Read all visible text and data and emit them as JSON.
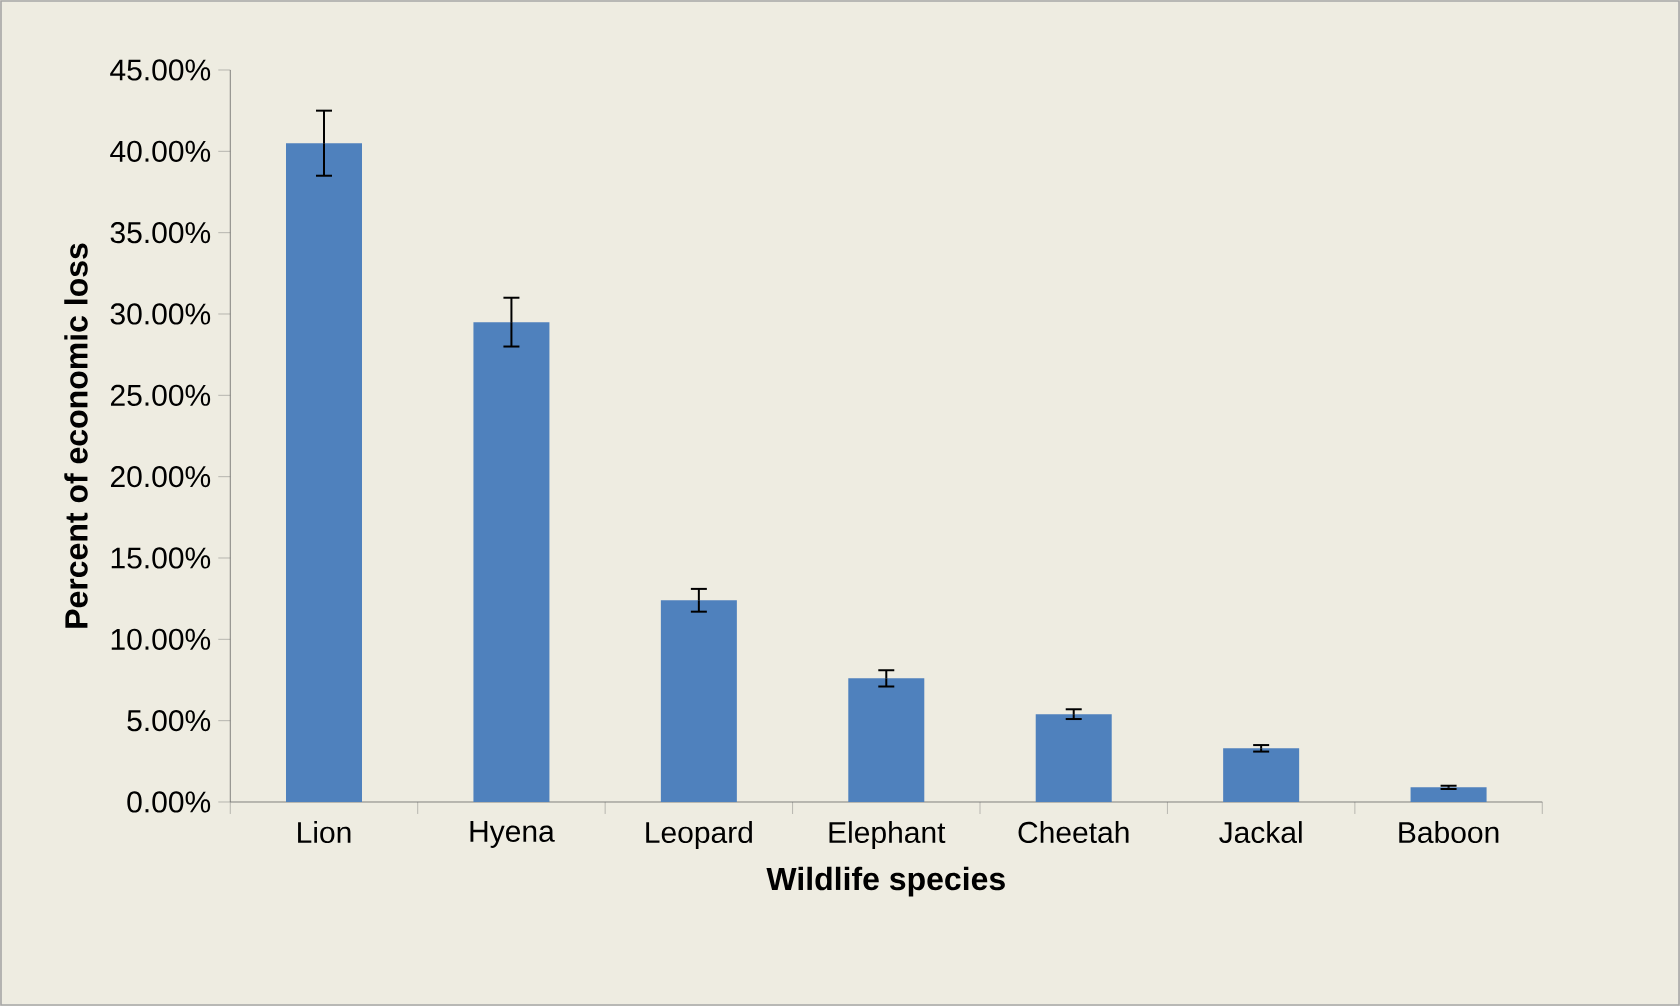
{
  "chart_data": {
    "type": "bar",
    "xlabel": "Wildlife species",
    "ylabel": "Percent of economic loss",
    "categories": [
      "Lion",
      "Hyena",
      "Leopard",
      "Elephant",
      "Cheetah",
      "Jackal",
      "Baboon"
    ],
    "values": [
      40.5,
      29.5,
      12.4,
      7.6,
      5.4,
      3.3,
      0.9
    ],
    "errors": [
      2.0,
      1.5,
      0.7,
      0.5,
      0.3,
      0.2,
      0.1
    ],
    "color": "#4f81bd",
    "ylim": [
      0,
      45
    ],
    "yticks": [
      {
        "value": 0,
        "label": "0.00%"
      },
      {
        "value": 5,
        "label": "5.00%"
      },
      {
        "value": 10,
        "label": "10.00%"
      },
      {
        "value": 15,
        "label": "15.00%"
      },
      {
        "value": 20,
        "label": "20.00%"
      },
      {
        "value": 25,
        "label": "25.00%"
      },
      {
        "value": 30,
        "label": "30.00%"
      },
      {
        "value": 35,
        "label": "35.00%"
      },
      {
        "value": 40,
        "label": "40.00%"
      },
      {
        "value": 45,
        "label": "45.00%"
      }
    ],
    "grid": false
  }
}
